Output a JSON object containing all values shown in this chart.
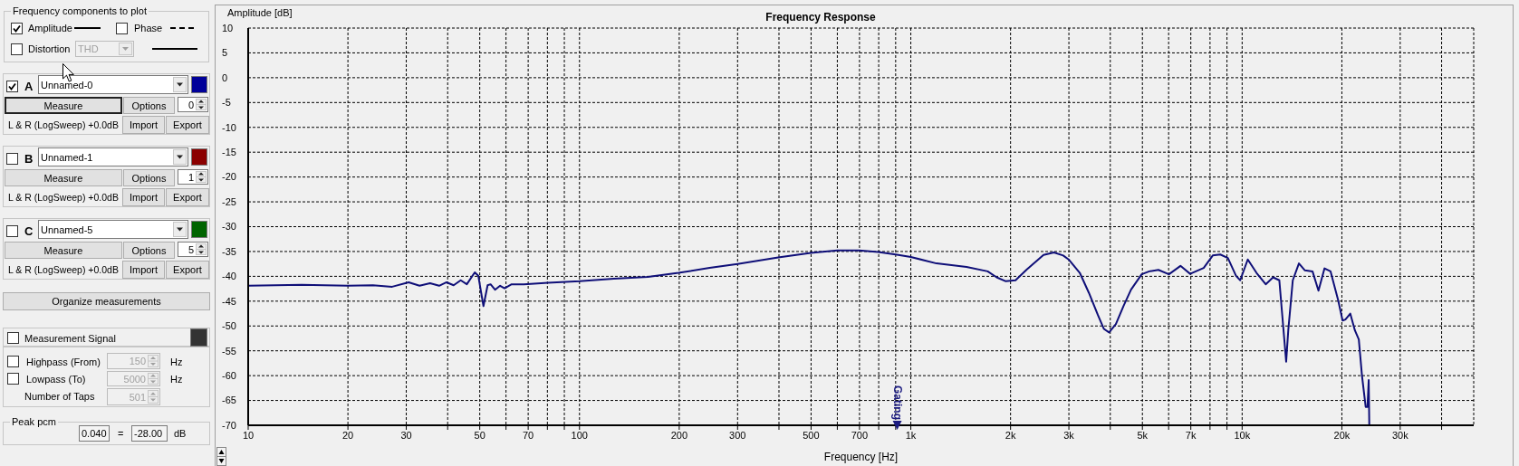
{
  "chart_data": [
    {
      "type": "other",
      "annotations": [
        "Frequency components to plot",
        "Amplitude",
        "Phase",
        "Distortion",
        "THD",
        "A",
        "Unnamed-0",
        "Measure",
        "Options",
        "0",
        "L & R (LogSweep) +0.0dB",
        "Import",
        "Export",
        "B",
        "Unnamed-1",
        "Measure",
        "Options",
        "1",
        "L & R (LogSweep) +0.0dB",
        "Import",
        "Export",
        "C",
        "Unnamed-5",
        "Measure",
        "Options",
        "5",
        "L & R (LogSweep) +0.0dB",
        "Import",
        "Export",
        "Organize measurements",
        "Measurement Signal",
        "Highpass (From)",
        "150",
        "Hz",
        "Lowpass (To)",
        "5000",
        "Hz",
        "Number of Taps",
        "501",
        "Peak pcm",
        "0.040",
        "=",
        "-28.00",
        "dB"
      ]
    },
    {
      "type": "line",
      "title": "Frequency Response",
      "xlabel": "Frequency [Hz]",
      "ylabel": "Amplitude [dB]",
      "x": [
        10,
        14.5,
        20,
        23.8,
        27.2,
        30.5,
        32.9,
        35.4,
        37.7,
        39.7,
        41.7,
        43.8,
        45.7,
        48.3,
        49.5,
        51.3,
        52.8,
        53.9,
        55.6,
        57.6,
        59.4,
        62.4,
        67.9,
        80.3,
        100,
        127,
        161,
        199,
        247,
        300,
        398,
        499,
        600,
        698,
        797,
        900,
        1000,
        1195,
        1473,
        1706,
        1816,
        1935,
        2070,
        2240,
        2515,
        2704,
        2883,
        2994,
        3236,
        3446,
        3670,
        3827,
        3966,
        4159,
        4383,
        4620,
        4975,
        5246,
        5588,
        6012,
        6515,
        6967,
        7656,
        8153,
        8590,
        9057,
        9586,
        9869,
        10400,
        11050,
        11780,
        12400,
        12950,
        13580,
        13780,
        14220,
        14840,
        15470,
        16310,
        17000,
        17730,
        18490,
        19490,
        20100,
        20500,
        21200,
        21900,
        22500,
        23000,
        23600,
        23900,
        24100,
        24200
      ],
      "values": [
        -41.9,
        -41.7,
        -41.9,
        -41.8,
        -42.1,
        -41.2,
        -41.9,
        -41.4,
        -41.9,
        -41.2,
        -41.8,
        -40.8,
        -41.6,
        -39.2,
        -39.9,
        -46.0,
        -41.8,
        -41.6,
        -42.7,
        -41.9,
        -42.4,
        -41.6,
        -41.6,
        -41.3,
        -41.0,
        -40.5,
        -40.1,
        -39.3,
        -38.3,
        -37.5,
        -36.2,
        -35.3,
        -34.8,
        -34.8,
        -35.1,
        -35.6,
        -36.1,
        -37.4,
        -38.1,
        -39.0,
        -40.2,
        -41.0,
        -40.8,
        -38.6,
        -35.7,
        -35.2,
        -35.8,
        -36.6,
        -39.3,
        -43.3,
        -47.8,
        -50.6,
        -51.3,
        -49.6,
        -46.0,
        -42.7,
        -39.6,
        -39.0,
        -38.7,
        -39.6,
        -37.9,
        -39.5,
        -38.3,
        -35.8,
        -35.6,
        -36.3,
        -39.9,
        -40.8,
        -36.6,
        -39.3,
        -41.6,
        -40.2,
        -40.8,
        -57.2,
        -50.9,
        -40.8,
        -37.4,
        -38.8,
        -39.0,
        -42.9,
        -38.4,
        -39.0,
        -44.8,
        -48.9,
        -48.7,
        -47.5,
        -50.9,
        -52.7,
        -60.0,
        -66.3,
        -66.3,
        -60.9,
        -70.0
      ],
      "color": "#0f0f78",
      "log": "x",
      "xlim": [
        10,
        50000
      ],
      "xticks": [
        10,
        20,
        30,
        {
          "value": 40,
          "label": null
        },
        50,
        {
          "value": 60,
          "label": null
        },
        70,
        {
          "value": 80,
          "label": null
        },
        {
          "value": 90,
          "label": null
        },
        100,
        200,
        300,
        {
          "value": 400,
          "label": null
        },
        500,
        {
          "value": 600,
          "label": null
        },
        700,
        {
          "value": 800,
          "label": null
        },
        {
          "value": 900,
          "label": null
        },
        {
          "value": 1000,
          "label": "1k"
        },
        {
          "value": 2000,
          "label": "2k"
        },
        {
          "value": 3000,
          "label": "3k"
        },
        {
          "value": 4000,
          "label": null
        },
        {
          "value": 5000,
          "label": "5k"
        },
        {
          "value": 6000,
          "label": null
        },
        {
          "value": 7000,
          "label": "7k"
        },
        {
          "value": 8000,
          "label": null
        },
        {
          "value": 9000,
          "label": null
        },
        {
          "value": 10000,
          "label": "10k"
        },
        {
          "value": 20000,
          "label": "20k"
        },
        {
          "value": 30000,
          "label": "30k"
        },
        {
          "value": 40000,
          "label": null
        }
      ],
      "ylim": [
        -70,
        10
      ],
      "yticks": [
        -70,
        -65,
        -60,
        -55,
        -50,
        -45,
        -40,
        -35,
        -30,
        -25,
        -20,
        -15,
        -10,
        -5,
        0,
        5,
        10
      ],
      "grid": true,
      "annotations": [
        {
          "text": "Gating",
          "x": 910,
          "y": -70
        }
      ]
    }
  ]
}
